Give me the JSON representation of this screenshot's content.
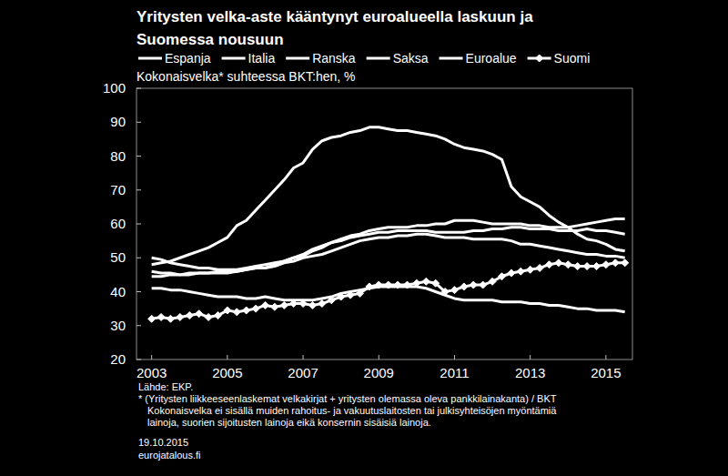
{
  "chart_data": {
    "type": "line",
    "title": [
      "Yritysten velka-aste kääntynyt euroalueella laskuun ja",
      "Suomessa nousuun"
    ],
    "subtitle": "Kokonaisvelka* suhteessa BKT:hen, %",
    "annotations": [
      "Lähde: EKP.",
      "* (Yritysten liikkeeseenlaskemat velkakirjat + yritysten olemassa oleva pankkilainakanta) / BKT",
      "Kokonaisvelka ei sisällä muiden rahoitus- ja vakuutuslaitosten tai julkisyhteisöjen myöntämiä",
      "lainoja, suorien sijoitusten lainoja eikä konsernin sisäisiä lainoja.",
      "19.10.2015",
      "eurojatalous.fi"
    ],
    "x": [
      2003,
      2003.25,
      2003.5,
      2003.75,
      2004,
      2004.25,
      2004.5,
      2004.75,
      2005,
      2005.25,
      2005.5,
      2005.75,
      2006,
      2006.25,
      2006.5,
      2006.75,
      2007,
      2007.25,
      2007.5,
      2007.75,
      2008,
      2008.25,
      2008.5,
      2008.75,
      2009,
      2009.25,
      2009.5,
      2009.75,
      2010,
      2010.25,
      2010.5,
      2010.75,
      2011,
      2011.25,
      2011.5,
      2011.75,
      2012,
      2012.25,
      2012.5,
      2012.75,
      2013,
      2013.25,
      2013.5,
      2013.75,
      2014,
      2014.25,
      2014.5,
      2014.75,
      2015,
      2015.25,
      2015.5
    ],
    "xlim": [
      2002.6,
      2015.7
    ],
    "xticks": [
      2003,
      2005,
      2007,
      2009,
      2011,
      2013,
      2015
    ],
    "ylim": [
      20,
      100
    ],
    "yticks": [
      20,
      30,
      40,
      50,
      60,
      70,
      80,
      90,
      100
    ],
    "grid": false,
    "legend": "top",
    "series": [
      {
        "name": "Espanja",
        "color": "#ffffff",
        "line_style": "solid",
        "values": [
          48,
          48.5,
          49,
          50,
          51,
          52,
          53,
          54.5,
          56,
          59.5,
          61,
          64,
          67,
          70,
          73,
          76.5,
          78,
          82,
          84.5,
          85.5,
          86,
          87,
          87.5,
          88.5,
          88.5,
          88,
          87.5,
          87.5,
          87,
          86.5,
          86,
          85,
          83.5,
          82.5,
          82,
          81.5,
          80.5,
          79,
          71,
          68,
          66.5,
          65,
          62.5,
          60.5,
          59,
          57,
          55.5,
          55,
          54,
          52.5,
          52
        ]
      },
      {
        "name": "Italia",
        "color": "#ffffff",
        "line_style": "solid",
        "values": [
          46,
          45.5,
          45.5,
          45,
          45.5,
          45.5,
          45.5,
          45.5,
          45.5,
          46,
          46.5,
          47,
          47,
          48,
          49,
          50,
          51,
          52.5,
          53.5,
          54.5,
          55,
          56,
          56.5,
          57,
          57.5,
          57.5,
          58,
          58,
          58,
          58,
          57.5,
          57.5,
          57.5,
          57.5,
          58,
          58,
          58.5,
          58.5,
          59,
          59,
          58.5,
          58.5,
          58.5,
          58,
          58,
          58,
          58.5,
          58,
          58,
          57.5,
          57
        ]
      },
      {
        "name": "Ranska",
        "color": "#ffffff",
        "line_style": "solid",
        "values": [
          50,
          49.5,
          48.5,
          48,
          47.5,
          47,
          47,
          46.5,
          46.5,
          46.5,
          47,
          47.5,
          48,
          48.5,
          49,
          50,
          50.5,
          52,
          53,
          54.5,
          55.5,
          56.5,
          57,
          58,
          58.5,
          59,
          59,
          59,
          59.5,
          59.5,
          60,
          60,
          61,
          61,
          61,
          60.5,
          60,
          60,
          60,
          60,
          59.5,
          59.5,
          59,
          59,
          59,
          59.5,
          60,
          60.5,
          61,
          61.5,
          61.5
        ]
      },
      {
        "name": "Saksa",
        "color": "#ffffff",
        "line_style": "solid",
        "values": [
          41,
          41,
          40.5,
          40.5,
          40,
          39.5,
          39,
          38.5,
          38.5,
          38.5,
          38,
          38,
          38.5,
          38,
          37.5,
          37.5,
          37.5,
          37.5,
          38,
          38.5,
          39.5,
          40,
          40.5,
          41,
          41.5,
          41.5,
          41.5,
          41.5,
          41.5,
          41,
          40,
          39,
          38,
          37.5,
          37.5,
          37.5,
          37.5,
          37,
          37,
          37,
          36.5,
          36.5,
          36,
          36,
          35.5,
          35,
          35,
          34.5,
          34.5,
          34.5,
          34
        ]
      },
      {
        "name": "Euroalue",
        "color": "#ffffff",
        "line_style": "solid",
        "values": [
          44.5,
          44.5,
          45,
          45,
          45,
          45.5,
          45.5,
          46,
          46,
          46,
          46.5,
          47,
          47,
          47.5,
          48.5,
          49,
          50,
          50.5,
          51,
          52,
          53,
          54,
          55,
          55.5,
          56,
          56,
          56.5,
          56.5,
          57,
          57,
          56.5,
          56,
          56,
          56,
          55.5,
          55.5,
          55.5,
          55.5,
          55,
          54,
          54,
          53.5,
          53,
          52.5,
          52,
          51.5,
          51,
          51,
          50.5,
          50.5,
          50
        ]
      },
      {
        "name": "Suomi",
        "color": "#ffffff",
        "line_style": "solid",
        "marker": "diamond",
        "values": [
          32,
          32.5,
          32,
          32.5,
          33,
          33.5,
          32.5,
          33,
          34.5,
          34,
          34.5,
          35,
          36,
          35.5,
          36,
          36.5,
          36.5,
          36,
          36.5,
          37.5,
          38.5,
          39,
          39.5,
          41.5,
          42,
          42,
          42,
          42,
          42.5,
          43,
          42.5,
          40,
          40.5,
          41.5,
          42,
          42,
          43,
          44.5,
          45.5,
          46,
          46.5,
          47,
          48,
          48.5,
          48,
          47.5,
          47.5,
          47.5,
          48,
          48.5,
          48.5
        ]
      }
    ]
  }
}
